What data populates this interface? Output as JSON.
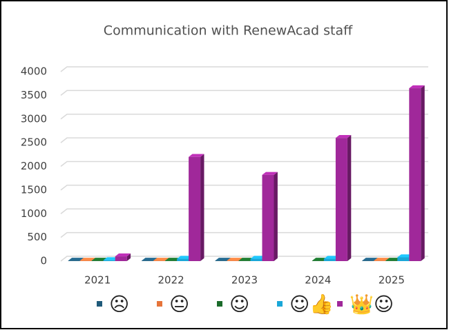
{
  "chart_data": {
    "type": "bar3d",
    "title": "Communication with RenewAcad staff",
    "categories": [
      "2021",
      "2022",
      "2023",
      "2024",
      "2025"
    ],
    "series": [
      {
        "name": "☹",
        "color": "#1f5a7a",
        "values": [
          10,
          10,
          10,
          null,
          10
        ]
      },
      {
        "name": "😐",
        "color": "#e6743a",
        "values": [
          10,
          10,
          10,
          null,
          10
        ]
      },
      {
        "name": "☺",
        "color": "#1a6b2a",
        "values": [
          10,
          10,
          10,
          10,
          10
        ]
      },
      {
        "name": "☺👍",
        "color": "#1aa7d8",
        "values": [
          20,
          50,
          50,
          50,
          80
        ]
      },
      {
        "name": "👑☺",
        "color": "#a0289a",
        "values": [
          100,
          2200,
          1820,
          2600,
          3650
        ]
      }
    ],
    "ylim": [
      0,
      4000
    ],
    "yticks": [
      0,
      500,
      1000,
      1500,
      2000,
      2500,
      3000,
      3500,
      4000
    ],
    "grid": true
  }
}
